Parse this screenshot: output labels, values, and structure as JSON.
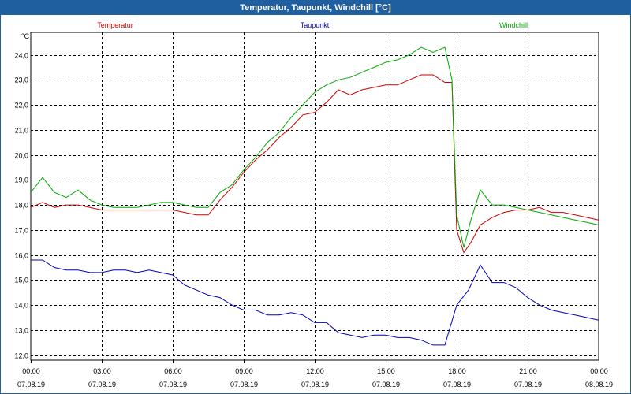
{
  "window": {
    "title": "Temperatur, Taupunkt, Windchill [°C]"
  },
  "chart_data": {
    "type": "line",
    "title": "Temperatur, Taupunkt, Windchill [°C]",
    "ylabel": "°C",
    "ylim": [
      11.8,
      24.9
    ],
    "xlim": [
      0,
      24
    ],
    "grid": true,
    "y_ticks": [
      12.0,
      13.0,
      14.0,
      15.0,
      16.0,
      17.0,
      18.0,
      19.0,
      20.0,
      21.0,
      22.0,
      23.0,
      24.0
    ],
    "y_tick_labels": [
      "12,0",
      "13,0",
      "14,0",
      "15,0",
      "16,0",
      "17,0",
      "18,0",
      "19,0",
      "20,0",
      "21,0",
      "22,0",
      "23,0",
      "24,0"
    ],
    "x_ticks": [
      {
        "hour": 0,
        "time": "00:00",
        "date": "07.08.19"
      },
      {
        "hour": 3,
        "time": "03:00",
        "date": "07.08.19"
      },
      {
        "hour": 6,
        "time": "06:00",
        "date": "07.08.19"
      },
      {
        "hour": 9,
        "time": "09:00",
        "date": "07.08.19"
      },
      {
        "hour": 12,
        "time": "12:00",
        "date": "07.08.19"
      },
      {
        "hour": 15,
        "time": "15:00",
        "date": "07.08.19"
      },
      {
        "hour": 18,
        "time": "18:00",
        "date": "07.08.19"
      },
      {
        "hour": 21,
        "time": "21:00",
        "date": "07.08.19"
      },
      {
        "hour": 24,
        "time": "00:00",
        "date": "08.08.19"
      }
    ],
    "series": [
      {
        "name": "Temperatur",
        "color": "#cc0000",
        "legend_pos": "left",
        "points": [
          [
            0,
            17.9
          ],
          [
            0.5,
            18.1
          ],
          [
            1,
            17.9
          ],
          [
            1.5,
            18.0
          ],
          [
            2,
            18.0
          ],
          [
            2.5,
            17.9
          ],
          [
            3,
            17.8
          ],
          [
            3.5,
            17.8
          ],
          [
            4,
            17.8
          ],
          [
            4.5,
            17.8
          ],
          [
            5,
            17.8
          ],
          [
            5.5,
            17.8
          ],
          [
            6,
            17.8
          ],
          [
            6.5,
            17.7
          ],
          [
            7,
            17.6
          ],
          [
            7.5,
            17.6
          ],
          [
            8,
            18.2
          ],
          [
            8.5,
            18.7
          ],
          [
            9,
            19.3
          ],
          [
            9.5,
            19.8
          ],
          [
            10,
            20.2
          ],
          [
            10.5,
            20.7
          ],
          [
            11,
            21.1
          ],
          [
            11.5,
            21.6
          ],
          [
            12,
            21.7
          ],
          [
            12.5,
            22.1
          ],
          [
            13,
            22.6
          ],
          [
            13.5,
            22.4
          ],
          [
            14,
            22.6
          ],
          [
            14.5,
            22.7
          ],
          [
            15,
            22.8
          ],
          [
            15.5,
            22.8
          ],
          [
            16,
            23.0
          ],
          [
            16.5,
            23.2
          ],
          [
            17,
            23.2
          ],
          [
            17.5,
            22.9
          ],
          [
            17.8,
            22.9
          ],
          [
            18.0,
            17.0
          ],
          [
            18.3,
            16.1
          ],
          [
            18.6,
            16.5
          ],
          [
            19,
            17.2
          ],
          [
            19.5,
            17.5
          ],
          [
            20,
            17.7
          ],
          [
            20.5,
            17.8
          ],
          [
            21,
            17.8
          ],
          [
            21.5,
            17.9
          ],
          [
            22,
            17.7
          ],
          [
            22.5,
            17.7
          ],
          [
            23,
            17.6
          ],
          [
            23.5,
            17.5
          ],
          [
            24,
            17.4
          ]
        ]
      },
      {
        "name": "Taupunkt",
        "color": "#0000bb",
        "legend_pos": "center",
        "points": [
          [
            0,
            15.8
          ],
          [
            0.5,
            15.8
          ],
          [
            1,
            15.5
          ],
          [
            1.5,
            15.4
          ],
          [
            2,
            15.4
          ],
          [
            2.5,
            15.3
          ],
          [
            3,
            15.3
          ],
          [
            3.5,
            15.4
          ],
          [
            4,
            15.4
          ],
          [
            4.5,
            15.3
          ],
          [
            5,
            15.4
          ],
          [
            5.5,
            15.3
          ],
          [
            6,
            15.2
          ],
          [
            6.5,
            14.8
          ],
          [
            7,
            14.6
          ],
          [
            7.5,
            14.4
          ],
          [
            8,
            14.3
          ],
          [
            8.5,
            14.0
          ],
          [
            9,
            13.8
          ],
          [
            9.5,
            13.8
          ],
          [
            10,
            13.6
          ],
          [
            10.5,
            13.6
          ],
          [
            11,
            13.7
          ],
          [
            11.5,
            13.6
          ],
          [
            12,
            13.3
          ],
          [
            12.5,
            13.3
          ],
          [
            13,
            12.9
          ],
          [
            13.5,
            12.8
          ],
          [
            14,
            12.7
          ],
          [
            14.5,
            12.8
          ],
          [
            15,
            12.8
          ],
          [
            15.5,
            12.7
          ],
          [
            16,
            12.7
          ],
          [
            16.5,
            12.6
          ],
          [
            17,
            12.4
          ],
          [
            17.5,
            12.4
          ],
          [
            18,
            14.0
          ],
          [
            18.5,
            14.6
          ],
          [
            19,
            15.6
          ],
          [
            19.5,
            14.9
          ],
          [
            20,
            14.9
          ],
          [
            20.5,
            14.7
          ],
          [
            21,
            14.3
          ],
          [
            21.5,
            14.0
          ],
          [
            22,
            13.8
          ],
          [
            22.5,
            13.7
          ],
          [
            23,
            13.6
          ],
          [
            23.5,
            13.5
          ],
          [
            24,
            13.4
          ]
        ]
      },
      {
        "name": "Windchill",
        "color": "#00aa00",
        "legend_pos": "right",
        "points": [
          [
            0,
            18.5
          ],
          [
            0.5,
            19.1
          ],
          [
            1,
            18.5
          ],
          [
            1.5,
            18.3
          ],
          [
            2,
            18.6
          ],
          [
            2.5,
            18.2
          ],
          [
            3,
            18.0
          ],
          [
            3.5,
            17.9
          ],
          [
            4,
            17.9
          ],
          [
            4.5,
            17.9
          ],
          [
            5,
            18.0
          ],
          [
            5.5,
            18.1
          ],
          [
            6,
            18.1
          ],
          [
            6.5,
            18.0
          ],
          [
            7,
            17.9
          ],
          [
            7.5,
            17.9
          ],
          [
            8,
            18.5
          ],
          [
            8.5,
            18.8
          ],
          [
            9,
            19.4
          ],
          [
            9.5,
            19.9
          ],
          [
            10,
            20.5
          ],
          [
            10.5,
            20.9
          ],
          [
            11,
            21.5
          ],
          [
            11.5,
            22.0
          ],
          [
            12,
            22.5
          ],
          [
            12.5,
            22.8
          ],
          [
            13,
            23.0
          ],
          [
            13.5,
            23.1
          ],
          [
            14,
            23.3
          ],
          [
            14.5,
            23.5
          ],
          [
            15,
            23.7
          ],
          [
            15.5,
            23.8
          ],
          [
            16,
            24.0
          ],
          [
            16.5,
            24.3
          ],
          [
            17,
            24.1
          ],
          [
            17.5,
            24.3
          ],
          [
            17.8,
            23.0
          ],
          [
            18.0,
            17.6
          ],
          [
            18.3,
            16.3
          ],
          [
            18.6,
            17.4
          ],
          [
            19,
            18.6
          ],
          [
            19.5,
            18.0
          ],
          [
            20,
            18.0
          ],
          [
            20.5,
            17.9
          ],
          [
            21,
            17.8
          ],
          [
            21.5,
            17.7
          ],
          [
            22,
            17.6
          ],
          [
            22.5,
            17.5
          ],
          [
            23,
            17.4
          ],
          [
            23.5,
            17.3
          ],
          [
            24,
            17.2
          ]
        ]
      }
    ]
  }
}
